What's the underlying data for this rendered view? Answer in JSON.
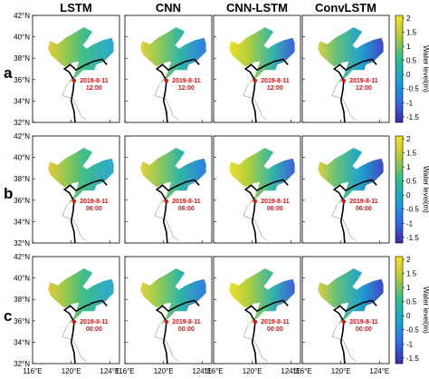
{
  "chart_data": {
    "type": "heatmap",
    "columns": [
      "LSTM",
      "CNN",
      "CNN-LSTM",
      "ConvLSTM"
    ],
    "rows": [
      {
        "label": "a",
        "annotation_date": "2019-8-11",
        "annotation_time": "12:00"
      },
      {
        "label": "b",
        "annotation_date": "2019-8-11",
        "annotation_time": "06:00"
      },
      {
        "label": "c",
        "annotation_date": "2019-8-11",
        "annotation_time": "00:00"
      }
    ],
    "x_ticks": [
      "116°E",
      "120°E",
      "124°E"
    ],
    "y_ticks": [
      "32°N",
      "34°N",
      "36°N",
      "38°N",
      "40°N",
      "42°N"
    ],
    "xlim": [
      116,
      125
    ],
    "ylim": [
      32,
      42
    ],
    "colorbar": {
      "label": "Water level(m)",
      "ticks": [
        "2",
        "1.5",
        "1",
        "0.5",
        "0",
        "-0.5",
        "-1",
        "-1.5"
      ],
      "range": [
        -1.7,
        2.1
      ]
    },
    "typhoon_position": {
      "lon": 120.3,
      "lat": 35.9
    }
  }
}
